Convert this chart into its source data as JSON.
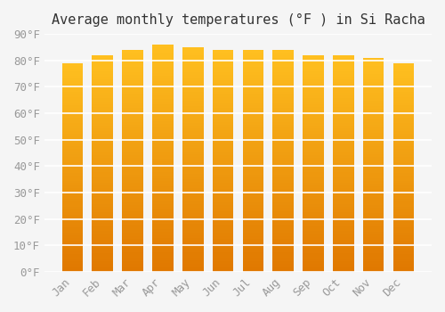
{
  "months": [
    "Jan",
    "Feb",
    "Mar",
    "Apr",
    "May",
    "Jun",
    "Jul",
    "Aug",
    "Sep",
    "Oct",
    "Nov",
    "Dec"
  ],
  "values": [
    79,
    82,
    84,
    86,
    85,
    84,
    84,
    84,
    82,
    82,
    81,
    79
  ],
  "title": "Average monthly temperatures (°F ) in Si Racha",
  "ylim": [
    0,
    90
  ],
  "yticks": [
    0,
    10,
    20,
    30,
    40,
    50,
    60,
    70,
    80,
    90
  ],
  "ytick_labels": [
    "0°F",
    "10°F",
    "20°F",
    "30°F",
    "40°F",
    "50°F",
    "60°F",
    "70°F",
    "80°F",
    "90°F"
  ],
  "bar_color_top": "#FFC020",
  "bar_color_bottom": "#E07800",
  "background_color": "#F5F5F5",
  "grid_color": "#FFFFFF",
  "title_fontsize": 11,
  "tick_fontsize": 9,
  "bar_width": 0.7
}
